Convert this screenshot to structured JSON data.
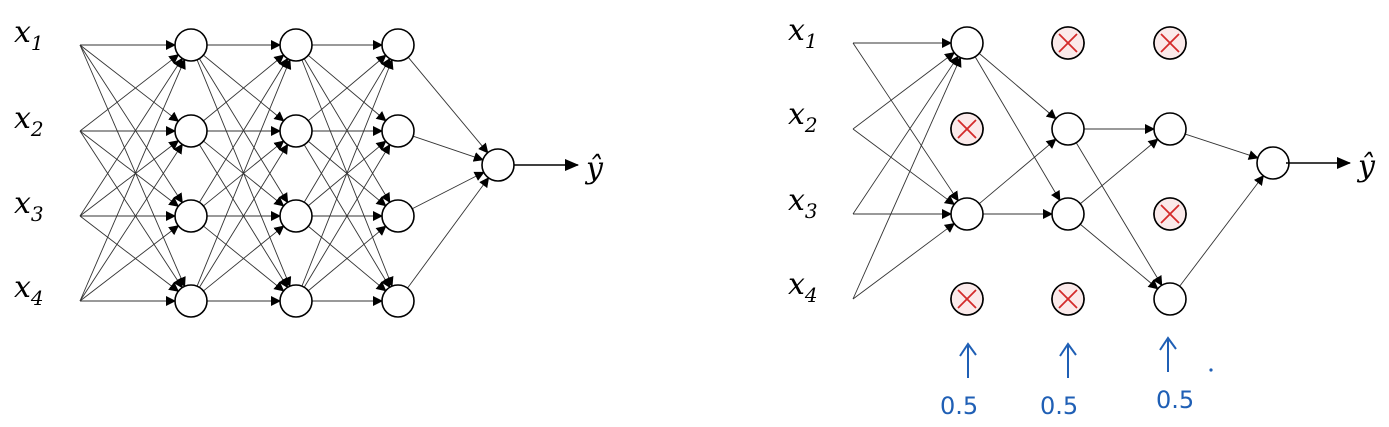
{
  "left_network": {
    "inputs": [
      {
        "var": "x",
        "sub": "1"
      },
      {
        "var": "x",
        "sub": "2"
      },
      {
        "var": "x",
        "sub": "3"
      },
      {
        "var": "x",
        "sub": "4"
      }
    ],
    "output_label": "ŷ",
    "hidden_layers": 3,
    "units_per_layer": 4
  },
  "right_network": {
    "inputs": [
      {
        "var": "x",
        "sub": "1"
      },
      {
        "var": "x",
        "sub": "2"
      },
      {
        "var": "x",
        "sub": "3"
      },
      {
        "var": "x",
        "sub": "4"
      }
    ],
    "output_label": "ŷ",
    "dropped_units": {
      "layer1": [
        2,
        4
      ],
      "layer2": [
        1,
        4
      ],
      "layer3": [
        1,
        3
      ]
    },
    "keep_prob_annotations": [
      "0.5",
      "0.5",
      "0.5"
    ]
  },
  "colors": {
    "dropout_mark": "#d42a2a",
    "handwriting": "#1f5fb5"
  }
}
